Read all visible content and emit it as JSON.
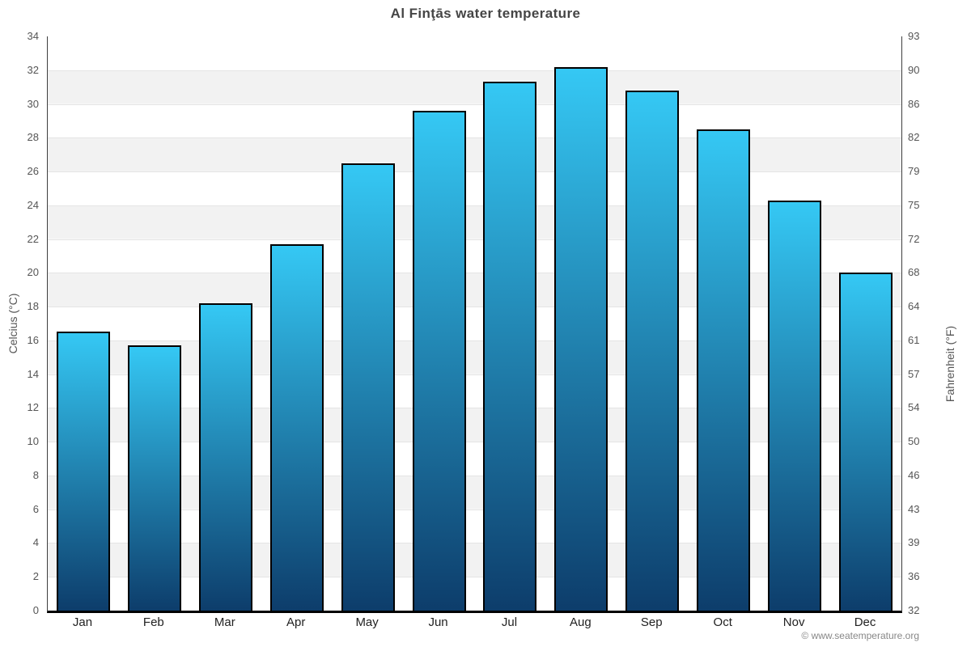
{
  "title": "Al Finţās water temperature",
  "footer": "© www.seatemperature.org",
  "chart_data": {
    "type": "bar",
    "title": "Al Finţās water temperature",
    "categories": [
      "Jan",
      "Feb",
      "Mar",
      "Apr",
      "May",
      "Jun",
      "Jul",
      "Aug",
      "Sep",
      "Oct",
      "Nov",
      "Dec"
    ],
    "values": [
      16.5,
      15.7,
      18.2,
      21.7,
      26.5,
      29.6,
      31.3,
      32.2,
      30.8,
      28.5,
      24.3,
      20.0
    ],
    "ylabel_left": "Celcius (°C)",
    "ylabel_right": "Fahrenheit (°F)",
    "ylim": [
      0,
      34
    ],
    "ytick_step": 2,
    "yticks_celsius": [
      34,
      32,
      30,
      28,
      26,
      24,
      22,
      20,
      18,
      16,
      14,
      12,
      10,
      8,
      6,
      4,
      2,
      0
    ],
    "yticks_fahrenheit": [
      "93",
      "90",
      "86",
      "82",
      "79",
      "75",
      "72",
      "68",
      "64",
      "61",
      "57",
      "54",
      "50",
      "46",
      "43",
      "39",
      "36",
      "32"
    ],
    "grid": "horizontal-bands-alternating",
    "legend": "none",
    "colors": {
      "bar_top": "#35c8f4",
      "bar_bottom": "#0d3d6b",
      "bar_border": "#000000",
      "band_light": "#ffffff",
      "band_dark": "#f2f2f2",
      "gridline": "#e4e4e4",
      "axis_line": "#3f3f3f",
      "baseline": "#000000",
      "title_text": "#454545",
      "tick_text": "#555555",
      "month_text": "#222222",
      "footer_text": "#888888"
    }
  }
}
